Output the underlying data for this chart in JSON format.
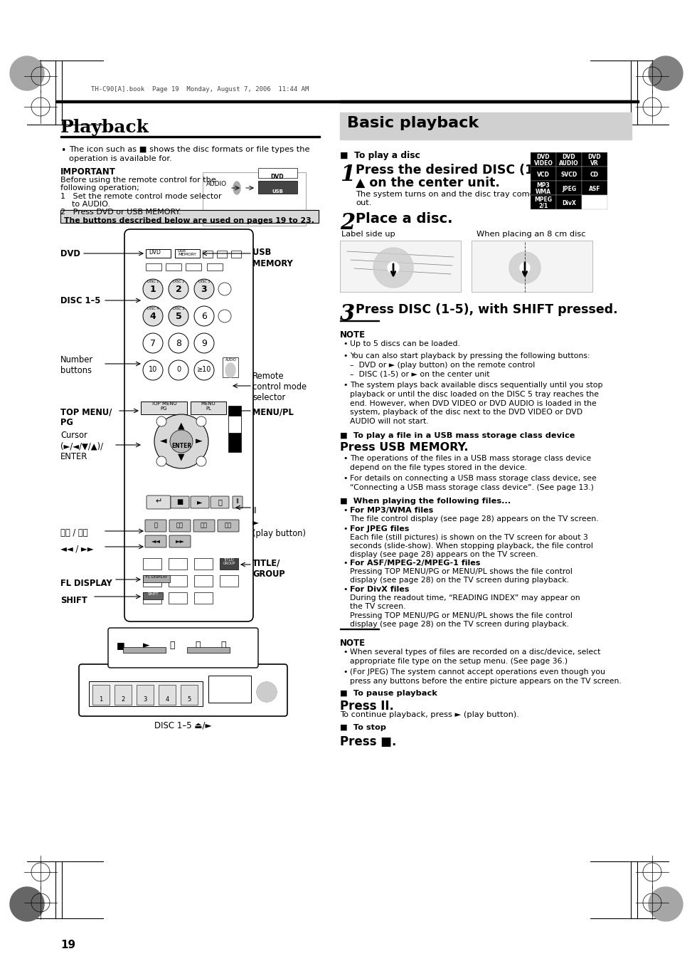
{
  "page_bg": "#ffffff",
  "page_number": "19",
  "header_text": "TH-C90[A].book  Page 19  Monday, August 7, 2006  11:44 AM",
  "left_title": "Playback",
  "right_title": "Basic playback",
  "important_label": "IMPORTANT",
  "buttons_note": "The buttons described below are used on pages 19 to 23.",
  "to_play_disc_header": "■  To play a disc",
  "step1_line1": "Press the desired DISC (1-5)",
  "step1_line2": "▲ on the center unit.",
  "step1_sub": "The system turns on and the disc tray comes\nout.",
  "step2_bold": "Place a disc.",
  "label_side_up": "Label side up",
  "when_8cm": "When placing an 8 cm disc",
  "step3_bold": "Press DISC (1-5), with SHIFT pressed.",
  "note_label": "NOTE",
  "note_items": [
    "Up to 5 discs can be loaded.",
    "You can also start playback by pressing the following buttons:\n–  DVD or ► (play button) on the remote control\n–  DISC (1-5) or ► on the center unit",
    "The system plays back available discs sequentially until you stop\nplayback or until the disc loaded on the DISC 5 tray reaches the\nend. However, when DVD VIDEO or DVD AUDIO is loaded in the\nsystem, playback of the disc next to the DVD VIDEO or DVD\nAUDIO will not start."
  ],
  "usb_header": "■  To play a file in a USB mass storage class device",
  "usb_title": "Press USB MEMORY.",
  "usb_items": [
    "The operations of the files in a USB mass storage class device\ndepend on the file types stored in the device.",
    "For details on connecting a USB mass storage class device, see\n“Connecting a USB mass storage class device”. (See page 13.)"
  ],
  "when_playing_header": "■  When playing the following files...",
  "when_playing_items": [
    {
      "bold": "For MP3/WMA files",
      "text": "The file control display (see page 28) appears on the TV screen."
    },
    {
      "bold": "For JPEG files",
      "text": "Each file (still pictures) is shown on the TV screen for about 3\nseconds (slide-show). When stopping playback, the file control\ndisplay (see page 28) appears on the TV screen."
    },
    {
      "bold": "For ASF/MPEG-2/MPEG-1 files",
      "text": "Pressing TOP MENU/PG or MENU/PL shows the file control\ndisplay (see page 28) on the TV screen during playback."
    },
    {
      "bold": "For DivX files",
      "text": "During the readout time, “READING INDEX” may appear on\nthe TV screen.\nPressing TOP MENU/PG or MENU/PL shows the file control\ndisplay (see page 28) on the TV screen during playback."
    }
  ],
  "note2_items": [
    "When several types of files are recorded on a disc/device, select\nappropriate file type on the setup menu. (See page 36.)",
    "(For JPEG) The system cannot accept operations even though you\npress any buttons before the entire picture appears on the TV screen."
  ],
  "pause_header": "■  To pause playback",
  "pause_title": "Press II.",
  "pause_sub": "To continue playback, press ► (play button).",
  "stop_header": "■  To stop",
  "stop_title": "Press ■.",
  "disc_format_grid": [
    [
      "DVD\nVIDEO",
      "DVD\nAUDIO",
      "DVD\nVR"
    ],
    [
      "VCD",
      "SVCD",
      "CD"
    ],
    [
      "MP3\nWMA",
      "JPEG",
      "ASF"
    ],
    [
      "MPEG\n2/1",
      "DivX",
      ""
    ]
  ]
}
